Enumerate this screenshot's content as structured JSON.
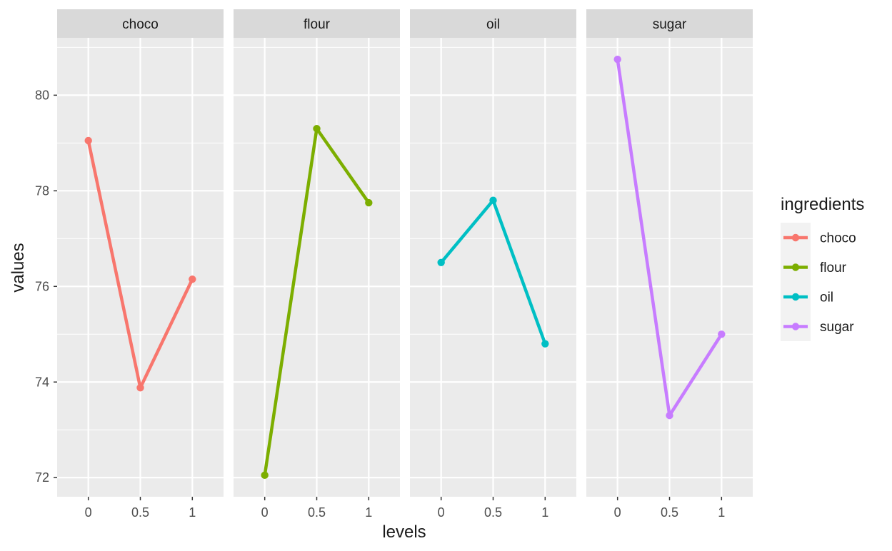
{
  "chart_data": {
    "type": "line",
    "facet_by": "ingredients",
    "panels": [
      {
        "label": "choco",
        "x": [
          0,
          0.5,
          1
        ],
        "values": [
          79.05,
          73.88,
          76.15
        ],
        "color": "#F8766D"
      },
      {
        "label": "flour",
        "x": [
          0,
          0.5,
          1
        ],
        "values": [
          72.05,
          79.3,
          77.75
        ],
        "color": "#7CAE00"
      },
      {
        "label": "oil",
        "x": [
          0,
          0.5,
          1
        ],
        "values": [
          76.5,
          77.8,
          74.8
        ],
        "color": "#00BFC4"
      },
      {
        "label": "sugar",
        "x": [
          0,
          0.5,
          1
        ],
        "values": [
          80.75,
          73.3,
          75.0
        ],
        "color": "#C77CFF"
      }
    ],
    "x_ticks": [
      "0",
      "0.5",
      "1"
    ],
    "y_ticks": [
      "72",
      "74",
      "76",
      "78",
      "80"
    ],
    "xlabel": "levels",
    "ylabel": "values",
    "ylim": [
      71.6,
      81.2
    ],
    "xlim": [
      -0.3,
      1.3
    ],
    "grid": true,
    "legend": {
      "title": "ingredients",
      "position": "right",
      "entries": [
        "choco",
        "flour",
        "oil",
        "sugar"
      ]
    }
  }
}
